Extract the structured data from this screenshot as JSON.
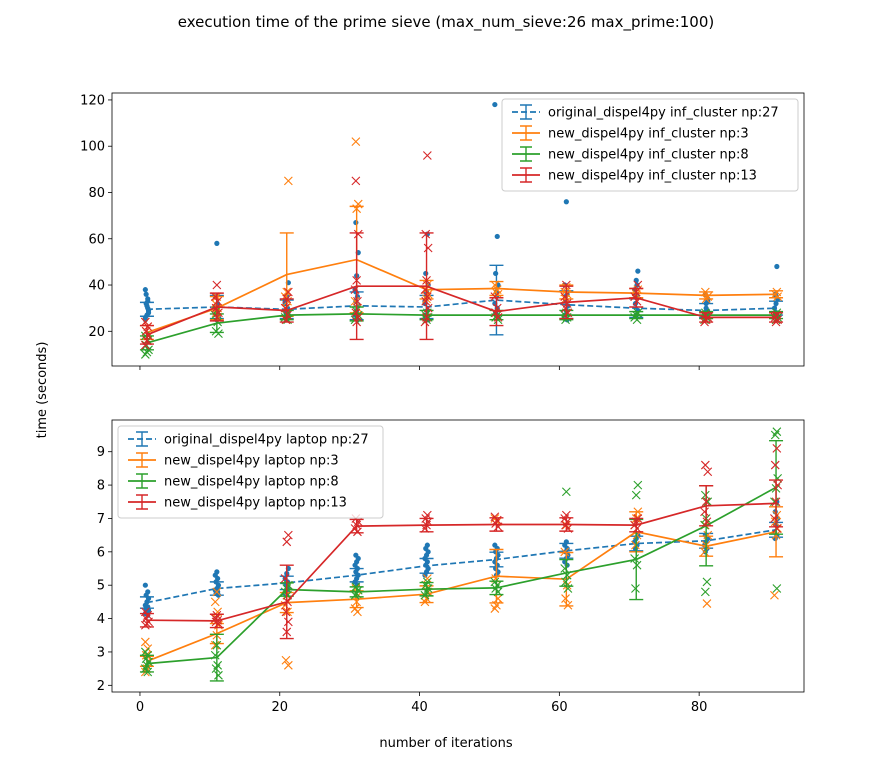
{
  "figure": {
    "title": "execution time of the prime sieve (max_num_sieve:26 max_prime:100)",
    "xlabel": "number of iterations",
    "ylabel": "time (seconds)"
  },
  "colors": {
    "blue": "#1f77b4",
    "orange": "#ff7f0e",
    "green": "#2ca02c",
    "red": "#d62728"
  },
  "chart_data": [
    {
      "type": "line",
      "panel": "top",
      "title": "",
      "xlabel": "",
      "ylabel": "",
      "xlim": [
        -4,
        95
      ],
      "ylim": [
        5,
        123
      ],
      "xticks": [
        0,
        20,
        40,
        60,
        80
      ],
      "xtick_labels": [
        "",
        "",
        "",
        "",
        ""
      ],
      "yticks": [
        20,
        40,
        60,
        80,
        100,
        120
      ],
      "ytick_labels": [
        "20",
        "40",
        "60",
        "80",
        "100",
        "120"
      ],
      "legend_position": "upper right",
      "grid": false,
      "x": [
        1,
        11,
        21,
        31,
        41,
        51,
        61,
        71,
        81,
        91
      ],
      "series": [
        {
          "name": "original_dispel4py inf_cluster np:27",
          "color": "#1f77b4",
          "dashed": true,
          "marker": "dot",
          "mean": [
            29.5,
            30.5,
            29.5,
            31.0,
            30.5,
            33.5,
            31.5,
            30.0,
            29.0,
            30.0
          ],
          "err": [
            3,
            5,
            4,
            6,
            5,
            15,
            6,
            4,
            3,
            3
          ],
          "scatter": [
            [
              38,
              34,
              32,
              29,
              27,
              25,
              30,
              36,
              28,
              31,
              26,
              33
            ],
            [
              58,
              35,
              32,
              28,
              27,
              25,
              30,
              31,
              29,
              26
            ],
            [
              41,
              35,
              32,
              30,
              28,
              27,
              25,
              33
            ],
            [
              67,
              54,
              44,
              38,
              35,
              33,
              31,
              29,
              27,
              25,
              37
            ],
            [
              62,
              45,
              40,
              35,
              32,
              29,
              27,
              25,
              37,
              33
            ],
            [
              118,
              61,
              45,
              40,
              35,
              32,
              30,
              28,
              26,
              37
            ],
            [
              76,
              40,
              36,
              33,
              31,
              29,
              27,
              25,
              35
            ],
            [
              46,
              42,
              38,
              35,
              32,
              29,
              27,
              36,
              40
            ],
            [
              36,
              33,
              30,
              28,
              27,
              26,
              34,
              32
            ],
            [
              48,
              36,
              34,
              32,
              30,
              28,
              27,
              26,
              35
            ]
          ]
        },
        {
          "name": "new_dispel4py inf_cluster np:3",
          "color": "#ff7f0e",
          "dashed": false,
          "marker": "x",
          "mean": [
            19.5,
            30.0,
            44.5,
            51.0,
            38.0,
            38.5,
            37.0,
            36.5,
            35.5,
            36.0
          ],
          "err": [
            3,
            5,
            18,
            23,
            4,
            3,
            3,
            2,
            1.5,
            1.5
          ],
          "scatter": [
            [
              24,
              22,
              20,
              18,
              16
            ],
            [
              35,
              32,
              30,
              28,
              26
            ],
            [
              85,
              37,
              35,
              33,
              30
            ],
            [
              102,
              75,
              73,
              33,
              30
            ],
            [
              40,
              38,
              36,
              34
            ],
            [
              40,
              38,
              37,
              36
            ],
            [
              39,
              37,
              36,
              34
            ],
            [
              38,
              36,
              35
            ],
            [
              37,
              35,
              34
            ],
            [
              37,
              36,
              35
            ]
          ]
        },
        {
          "name": "new_dispel4py inf_cluster np:8",
          "color": "#2ca02c",
          "dashed": false,
          "marker": "x",
          "mean": [
            15.0,
            23.5,
            27.0,
            27.5,
            27.0,
            27.0,
            27.0,
            27.0,
            27.0,
            27.0
          ],
          "err": [
            3,
            4,
            2,
            3,
            2,
            2,
            2,
            1.5,
            1.5,
            1.5
          ],
          "scatter": [
            [
              18,
              16,
              14,
              12,
              11,
              10
            ],
            [
              29,
              27,
              24,
              20,
              19
            ],
            [
              28,
              27,
              26,
              25
            ],
            [
              29,
              27,
              26,
              25
            ],
            [
              28,
              27,
              26,
              25
            ],
            [
              28,
              27,
              26,
              25
            ],
            [
              28,
              27,
              26,
              25
            ],
            [
              28,
              27,
              26,
              25
            ],
            [
              28,
              27,
              26,
              25
            ],
            [
              28,
              27,
              26,
              25
            ]
          ]
        },
        {
          "name": "new_dispel4py inf_cluster np:13",
          "color": "#d62728",
          "dashed": false,
          "marker": "x",
          "mean": [
            18.5,
            30.5,
            29.0,
            39.5,
            39.5,
            28.5,
            32.5,
            34.5,
            26.0,
            26.0
          ],
          "err": [
            4,
            6,
            5,
            23,
            23,
            6,
            7,
            4,
            2,
            2
          ],
          "scatter": [
            [
              24,
              22,
              20,
              18,
              16,
              14
            ],
            [
              40,
              35,
              33,
              30,
              28,
              26
            ],
            [
              37,
              34,
              30,
              27,
              25
            ],
            [
              85,
              62,
              42,
              38,
              33,
              28,
              26,
              24
            ],
            [
              96,
              62,
              56,
              42,
              38,
              35,
              33,
              30,
              26,
              24
            ],
            [
              35,
              30,
              28,
              26
            ],
            [
              40,
              35,
              32,
              30,
              28
            ],
            [
              40,
              37,
              35,
              33
            ],
            [
              27,
              26,
              25,
              24
            ],
            [
              27,
              26,
              25,
              24
            ]
          ]
        }
      ]
    },
    {
      "type": "line",
      "panel": "bottom",
      "title": "",
      "xlabel": "number of iterations",
      "ylabel": "",
      "xlim": [
        -4,
        95
      ],
      "ylim": [
        1.8,
        9.95
      ],
      "xticks": [
        0,
        20,
        40,
        60,
        80
      ],
      "xtick_labels": [
        "0",
        "20",
        "40",
        "60",
        "80"
      ],
      "yticks": [
        2,
        3,
        4,
        5,
        6,
        7,
        8,
        9
      ],
      "ytick_labels": [
        "2",
        "3",
        "4",
        "5",
        "6",
        "7",
        "8",
        "9"
      ],
      "legend_position": "upper left",
      "grid": false,
      "x": [
        1,
        11,
        21,
        31,
        41,
        51,
        61,
        71,
        81,
        91
      ],
      "series": [
        {
          "name": "original_dispel4py laptop np:27",
          "color": "#1f77b4",
          "dashed": true,
          "marker": "dot",
          "mean": [
            4.48,
            4.9,
            5.07,
            5.3,
            5.58,
            5.77,
            6.03,
            6.25,
            6.33,
            6.66
          ],
          "err": [
            0.17,
            0.2,
            0.2,
            0.2,
            0.22,
            0.22,
            0.22,
            0.22,
            0.22,
            0.22
          ],
          "scatter": [
            [
              5.0,
              4.8,
              4.7,
              4.6,
              4.5,
              4.4,
              4.35,
              4.3,
              4.25,
              4.2,
              4.15,
              4.1
            ],
            [
              5.4,
              5.3,
              5.2,
              5.1,
              5.0,
              4.9,
              4.85,
              4.8,
              4.75,
              4.7
            ],
            [
              5.5,
              5.35,
              5.2,
              5.1,
              5.0,
              4.9,
              4.8,
              4.75
            ],
            [
              5.9,
              5.8,
              5.7,
              5.6,
              5.5,
              5.4,
              5.3,
              5.2,
              5.1,
              5.0
            ],
            [
              6.2,
              6.1,
              6.0,
              5.9,
              5.8,
              5.7,
              5.6,
              5.5,
              5.4,
              5.3
            ],
            [
              6.2,
              6.1,
              6.0,
              5.9,
              5.8,
              5.7,
              5.6,
              5.5,
              5.4,
              5.3
            ],
            [
              6.3,
              6.2,
              6.1,
              6.0,
              5.9,
              5.8,
              5.7,
              5.6
            ],
            [
              6.5,
              6.4,
              6.3,
              6.2,
              6.1
            ],
            [
              6.5,
              6.4,
              6.3,
              6.2,
              6.1,
              6.0
            ],
            [
              7.5,
              7.2,
              7.0,
              6.8,
              6.6,
              6.5,
              6.4
            ]
          ]
        },
        {
          "name": "new_dispel4py laptop np:3",
          "color": "#ff7f0e",
          "dashed": false,
          "marker": "x",
          "mean": [
            2.72,
            3.55,
            4.48,
            4.58,
            4.73,
            5.27,
            5.18,
            6.6,
            6.17,
            6.6
          ],
          "err": [
            0.15,
            0.3,
            0.3,
            0.25,
            0.25,
            0.8,
            0.8,
            0.6,
            0.3,
            0.75
          ],
          "scatter": [
            [
              3.3,
              3.1,
              2.9,
              2.7,
              2.5,
              2.4
            ],
            [
              4.8,
              4.5,
              4.2,
              4.0,
              3.8,
              3.5,
              3.2
            ],
            [
              5.0,
              4.7,
              4.4,
              4.2,
              2.75,
              2.6
            ],
            [
              4.9,
              4.7,
              4.5,
              4.3,
              4.2
            ],
            [
              5.2,
              5.0,
              4.8,
              4.6,
              4.5
            ],
            [
              7.0,
              6.9,
              5.2,
              4.6,
              4.4,
              4.3
            ],
            [
              6.8,
              6.0,
              5.0,
              4.6,
              4.4
            ],
            [
              7.2,
              7.0,
              6.8,
              6.5,
              6.2
            ],
            [
              6.8,
              6.5,
              6.2,
              6.0,
              4.45
            ],
            [
              7.1,
              6.9,
              6.7,
              6.5,
              4.7
            ]
          ]
        },
        {
          "name": "new_dispel4py laptop np:8",
          "color": "#2ca02c",
          "dashed": false,
          "marker": "x",
          "mean": [
            2.65,
            2.83,
            4.87,
            4.8,
            4.88,
            4.92,
            5.37,
            5.77,
            6.78,
            7.93
          ],
          "err": [
            0.25,
            0.7,
            0.2,
            0.15,
            0.2,
            0.2,
            0.4,
            1.2,
            1.2,
            1.4
          ],
          "scatter": [
            [
              3.0,
              2.9,
              2.8,
              2.7,
              2.6,
              2.5,
              2.4
            ],
            [
              3.2,
              2.9,
              2.6,
              2.5,
              2.3
            ],
            [
              5.0,
              4.9,
              4.8,
              4.7
            ],
            [
              4.95,
              4.85,
              4.75,
              4.7
            ],
            [
              5.1,
              5.0,
              4.9,
              4.8,
              4.7
            ],
            [
              5.1,
              5.0,
              4.9,
              4.8
            ],
            [
              7.8,
              5.5,
              5.3,
              5.1,
              4.9
            ],
            [
              8.0,
              7.7,
              5.8,
              5.6,
              4.9
            ],
            [
              7.7,
              7.5,
              7.0,
              6.8,
              5.1,
              4.8
            ],
            [
              9.6,
              9.5,
              8.2,
              7.9,
              7.5,
              4.9
            ]
          ]
        },
        {
          "name": "new_dispel4py laptop np:13",
          "color": "#d62728",
          "dashed": false,
          "marker": "x",
          "mean": [
            3.95,
            3.93,
            4.5,
            6.77,
            6.8,
            6.82,
            6.82,
            6.8,
            7.38,
            7.45
          ],
          "err": [
            0.2,
            0.2,
            1.1,
            0.2,
            0.2,
            0.2,
            0.2,
            0.2,
            0.6,
            0.7
          ],
          "scatter": [
            [
              4.2,
              4.1,
              4.0,
              3.9,
              3.85,
              3.8
            ],
            [
              4.1,
              4.0,
              3.95,
              3.9,
              3.85
            ],
            [
              6.5,
              6.3,
              5.2,
              4.5,
              4.2,
              3.9,
              3.6
            ],
            [
              7.0,
              6.9,
              6.8,
              6.7,
              6.6
            ],
            [
              7.1,
              7.0,
              6.9,
              6.8,
              6.7
            ],
            [
              7.05,
              6.95,
              6.85,
              6.75
            ],
            [
              7.1,
              7.0,
              6.9,
              6.8,
              6.7
            ],
            [
              7.0,
              6.9,
              6.8,
              6.7
            ],
            [
              8.6,
              8.4,
              7.5,
              7.2,
              6.9
            ],
            [
              9.1,
              8.6,
              8.0,
              7.5,
              7.0,
              6.7
            ]
          ]
        }
      ]
    }
  ]
}
